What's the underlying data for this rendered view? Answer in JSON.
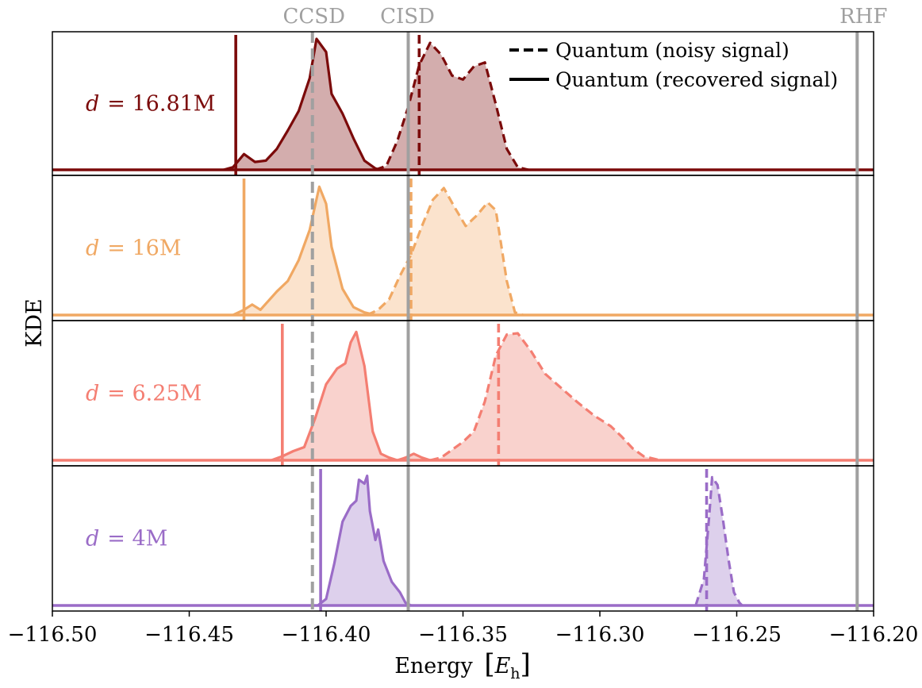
{
  "chart_data": {
    "type": "area",
    "title": "",
    "xlabel": "Energy [E_h]",
    "xlabel_main": "Energy",
    "xlabel_unit": "E",
    "xlabel_sub": "h",
    "ylabel": "KDE",
    "xlim": [
      -116.5,
      -116.2
    ],
    "xticks": [
      -116.5,
      -116.45,
      -116.4,
      -116.35,
      -116.3,
      -116.25,
      -116.2
    ],
    "xtick_labels": [
      "−116.50",
      "−116.45",
      "−116.40",
      "−116.35",
      "−116.30",
      "−116.25",
      "−116.20"
    ],
    "reference_lines": [
      {
        "label": "CCSD",
        "x": -116.405,
        "style": "dashed"
      },
      {
        "label": "CISD",
        "x": -116.37,
        "style": "solid"
      },
      {
        "label": "RHF",
        "x": -116.206,
        "style": "solid"
      }
    ],
    "legend": {
      "placement": "top-right",
      "entries": [
        {
          "label": "Quantum (noisy signal)",
          "style": "dashed"
        },
        {
          "label": "Quantum (recovered signal)",
          "style": "solid"
        }
      ]
    },
    "panels": [
      {
        "label_var": "d",
        "label_value": "= 16.81M",
        "color": "#7b0a0a",
        "fill": "#d3adad",
        "recovered_marker": -116.433,
        "noisy_marker": -116.366,
        "recovered": [
          [
            -116.4375,
            0
          ],
          [
            -116.434,
            0.02
          ],
          [
            -116.43,
            0.12
          ],
          [
            -116.426,
            0.06
          ],
          [
            -116.422,
            0.07
          ],
          [
            -116.418,
            0.16
          ],
          [
            -116.414,
            0.3
          ],
          [
            -116.41,
            0.45
          ],
          [
            -116.406,
            0.7
          ],
          [
            -116.4035,
            1.0
          ],
          [
            -116.4,
            0.9
          ],
          [
            -116.398,
            0.58
          ],
          [
            -116.394,
            0.43
          ],
          [
            -116.39,
            0.24
          ],
          [
            -116.386,
            0.07
          ],
          [
            -116.382,
            0.01
          ],
          [
            -116.38,
            0
          ]
        ],
        "noisy": [
          [
            -116.382,
            0
          ],
          [
            -116.378,
            0.03
          ],
          [
            -116.374,
            0.22
          ],
          [
            -116.37,
            0.48
          ],
          [
            -116.366,
            0.8
          ],
          [
            -116.362,
            0.97
          ],
          [
            -116.358,
            0.88
          ],
          [
            -116.354,
            0.72
          ],
          [
            -116.35,
            0.69
          ],
          [
            -116.346,
            0.79
          ],
          [
            -116.342,
            0.82
          ],
          [
            -116.338,
            0.5
          ],
          [
            -116.334,
            0.16
          ],
          [
            -116.33,
            0.02
          ],
          [
            -116.326,
            0
          ]
        ]
      },
      {
        "label_var": "d",
        "label_value": "= 16M",
        "color": "#f0a863",
        "fill": "#fbe3cd",
        "recovered_marker": -116.43,
        "noisy_marker": -116.369,
        "recovered": [
          [
            -116.434,
            0
          ],
          [
            -116.43,
            0.04
          ],
          [
            -116.427,
            0.08
          ],
          [
            -116.424,
            0.04
          ],
          [
            -116.421,
            0.11
          ],
          [
            -116.418,
            0.18
          ],
          [
            -116.414,
            0.26
          ],
          [
            -116.41,
            0.42
          ],
          [
            -116.406,
            0.65
          ],
          [
            -116.4025,
            0.98
          ],
          [
            -116.4,
            0.85
          ],
          [
            -116.398,
            0.52
          ],
          [
            -116.394,
            0.2
          ],
          [
            -116.39,
            0.06
          ],
          [
            -116.386,
            0.02
          ],
          [
            -116.382,
            0
          ]
        ],
        "noisy": [
          [
            -116.385,
            0
          ],
          [
            -116.381,
            0.04
          ],
          [
            -116.377,
            0.12
          ],
          [
            -116.373,
            0.3
          ],
          [
            -116.369,
            0.46
          ],
          [
            -116.365,
            0.68
          ],
          [
            -116.361,
            0.88
          ],
          [
            -116.357,
            0.97
          ],
          [
            -116.353,
            0.82
          ],
          [
            -116.349,
            0.68
          ],
          [
            -116.345,
            0.76
          ],
          [
            -116.341,
            0.86
          ],
          [
            -116.338,
            0.8
          ],
          [
            -116.334,
            0.26
          ],
          [
            -116.331,
            0.02
          ],
          [
            -116.328,
            0
          ]
        ]
      },
      {
        "label_var": "d",
        "label_value": "= 6.25M",
        "color": "#f47e72",
        "fill": "#f9d2cd",
        "recovered_marker": -116.416,
        "noisy_marker": -116.337,
        "recovered": [
          [
            -116.42,
            0
          ],
          [
            -116.416,
            0.03
          ],
          [
            -116.412,
            0.07
          ],
          [
            -116.408,
            0.1
          ],
          [
            -116.404,
            0.32
          ],
          [
            -116.4,
            0.58
          ],
          [
            -116.396,
            0.7
          ],
          [
            -116.393,
            0.74
          ],
          [
            -116.391,
            0.9
          ],
          [
            -116.389,
            0.98
          ],
          [
            -116.386,
            0.72
          ],
          [
            -116.383,
            0.22
          ],
          [
            -116.38,
            0.05
          ],
          [
            -116.377,
            0.02
          ],
          [
            -116.374,
            0
          ],
          [
            -116.371,
            0.02
          ],
          [
            -116.368,
            0.05
          ],
          [
            -116.365,
            0.02
          ],
          [
            -116.362,
            0
          ]
        ],
        "noisy": [
          [
            -116.362,
            0
          ],
          [
            -116.358,
            0.02
          ],
          [
            -116.354,
            0.08
          ],
          [
            -116.35,
            0.14
          ],
          [
            -116.346,
            0.22
          ],
          [
            -116.342,
            0.45
          ],
          [
            -116.338,
            0.8
          ],
          [
            -116.334,
            0.96
          ],
          [
            -116.33,
            0.97
          ],
          [
            -116.325,
            0.83
          ],
          [
            -116.32,
            0.66
          ],
          [
            -116.314,
            0.55
          ],
          [
            -116.308,
            0.44
          ],
          [
            -116.302,
            0.34
          ],
          [
            -116.296,
            0.26
          ],
          [
            -116.292,
            0.18
          ],
          [
            -116.288,
            0.09
          ],
          [
            -116.284,
            0.03
          ],
          [
            -116.278,
            0
          ]
        ]
      },
      {
        "label_var": "d",
        "label_value": "= 4M",
        "color": "#9a6cc7",
        "fill": "#ddd0ec",
        "recovered_marker": -116.402,
        "noisy_marker": -116.261,
        "recovered": [
          [
            -116.403,
            0
          ],
          [
            -116.4,
            0.05
          ],
          [
            -116.397,
            0.32
          ],
          [
            -116.394,
            0.64
          ],
          [
            -116.391,
            0.76
          ],
          [
            -116.389,
            0.8
          ],
          [
            -116.388,
            0.96
          ],
          [
            -116.386,
            0.93
          ],
          [
            -116.385,
            0.99
          ],
          [
            -116.384,
            0.72
          ],
          [
            -116.382,
            0.5
          ],
          [
            -116.381,
            0.58
          ],
          [
            -116.379,
            0.34
          ],
          [
            -116.376,
            0.18
          ],
          [
            -116.373,
            0.1
          ],
          [
            -116.371,
            0.02
          ],
          [
            -116.369,
            0
          ]
        ],
        "noisy": [
          [
            -116.265,
            0
          ],
          [
            -116.262,
            0.2
          ],
          [
            -116.26,
            0.7
          ],
          [
            -116.259,
            0.98
          ],
          [
            -116.257,
            0.92
          ],
          [
            -116.255,
            0.65
          ],
          [
            -116.253,
            0.35
          ],
          [
            -116.251,
            0.1
          ],
          [
            -116.249,
            0.02
          ],
          [
            -116.248,
            0
          ]
        ]
      }
    ]
  }
}
